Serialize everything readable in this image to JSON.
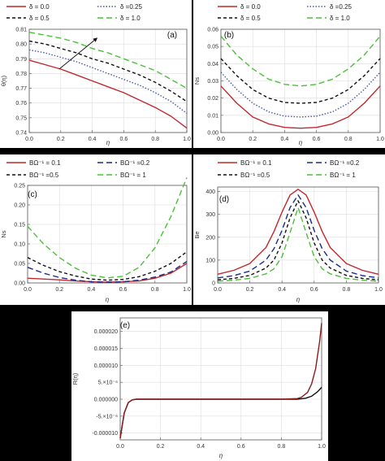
{
  "chart_data": [
    {
      "id": "a",
      "type": "line",
      "panel_label": "(a)",
      "xlabel": "η",
      "ylabel": "θ(η)",
      "xlim": [
        0,
        1
      ],
      "ylim": [
        0.74,
        0.81
      ],
      "xticks": [
        0.0,
        0.2,
        0.4,
        0.6,
        0.8,
        1.0
      ],
      "yticks": [
        0.74,
        0.75,
        0.76,
        0.77,
        0.78,
        0.79,
        0.8,
        0.81
      ],
      "legend": {
        "placement": "top",
        "columns": 2
      },
      "annotations": [
        "arrow"
      ],
      "series": [
        {
          "name": "δ = 0.0",
          "color": "#c0282d",
          "dash": "solid",
          "x": [
            0,
            0.1,
            0.2,
            0.3,
            0.4,
            0.5,
            0.6,
            0.7,
            0.8,
            0.9,
            1.0
          ],
          "y": [
            0.789,
            0.786,
            0.783,
            0.779,
            0.775,
            0.771,
            0.767,
            0.762,
            0.757,
            0.751,
            0.743
          ]
        },
        {
          "name": "δ =0.25",
          "color": "#4a58a8",
          "dash": "dot",
          "x": [
            0,
            0.1,
            0.2,
            0.3,
            0.4,
            0.5,
            0.6,
            0.7,
            0.8,
            0.9,
            1.0
          ],
          "y": [
            0.796,
            0.794,
            0.791,
            0.788,
            0.784,
            0.78,
            0.776,
            0.772,
            0.767,
            0.761,
            0.753
          ]
        },
        {
          "name": "δ = 0.5",
          "color": "#111111",
          "dash": "dash",
          "x": [
            0,
            0.1,
            0.2,
            0.3,
            0.4,
            0.5,
            0.6,
            0.7,
            0.8,
            0.9,
            1.0
          ],
          "y": [
            0.802,
            0.8,
            0.797,
            0.794,
            0.79,
            0.787,
            0.783,
            0.779,
            0.774,
            0.768,
            0.761
          ]
        },
        {
          "name": "δ = 1.0",
          "color": "#4cbf3a",
          "dash": "longdash",
          "x": [
            0,
            0.1,
            0.2,
            0.3,
            0.4,
            0.5,
            0.6,
            0.7,
            0.8,
            0.9,
            1.0
          ],
          "y": [
            0.808,
            0.806,
            0.804,
            0.801,
            0.797,
            0.794,
            0.79,
            0.786,
            0.782,
            0.776,
            0.77
          ]
        }
      ]
    },
    {
      "id": "b",
      "type": "line",
      "panel_label": "(b)",
      "xlabel": "η",
      "ylabel": "Ns",
      "xlim": [
        0,
        1
      ],
      "ylim": [
        0,
        0.06
      ],
      "xticks": [
        0.0,
        0.2,
        0.4,
        0.6,
        0.8,
        1.0
      ],
      "yticks": [
        0.0,
        0.01,
        0.02,
        0.03,
        0.04,
        0.05,
        0.06
      ],
      "legend": {
        "placement": "top",
        "columns": 2
      },
      "series": [
        {
          "name": "δ = 0.0",
          "color": "#c0282d",
          "dash": "solid",
          "x": [
            0,
            0.1,
            0.2,
            0.3,
            0.4,
            0.5,
            0.6,
            0.7,
            0.8,
            0.9,
            1.0
          ],
          "y": [
            0.027,
            0.017,
            0.009,
            0.005,
            0.003,
            0.0025,
            0.003,
            0.005,
            0.009,
            0.017,
            0.027
          ]
        },
        {
          "name": "δ =0.25",
          "color": "#4a58a8",
          "dash": "dot",
          "x": [
            0,
            0.1,
            0.2,
            0.3,
            0.4,
            0.5,
            0.6,
            0.7,
            0.8,
            0.9,
            1.0
          ],
          "y": [
            0.035,
            0.025,
            0.017,
            0.012,
            0.0095,
            0.009,
            0.0095,
            0.012,
            0.017,
            0.025,
            0.035
          ]
        },
        {
          "name": "δ = 0.5",
          "color": "#111111",
          "dash": "dash",
          "x": [
            0,
            0.1,
            0.2,
            0.3,
            0.4,
            0.5,
            0.6,
            0.7,
            0.8,
            0.9,
            1.0
          ],
          "y": [
            0.043,
            0.033,
            0.025,
            0.02,
            0.0175,
            0.017,
            0.0175,
            0.02,
            0.025,
            0.033,
            0.043
          ]
        },
        {
          "name": "δ = 1.0",
          "color": "#4cbf3a",
          "dash": "longdash",
          "x": [
            0,
            0.1,
            0.2,
            0.3,
            0.4,
            0.5,
            0.6,
            0.7,
            0.8,
            0.9,
            1.0
          ],
          "y": [
            0.056,
            0.045,
            0.037,
            0.031,
            0.028,
            0.027,
            0.028,
            0.031,
            0.037,
            0.045,
            0.056
          ]
        }
      ]
    },
    {
      "id": "c",
      "type": "line",
      "panel_label": "(c)",
      "xlabel": "η",
      "ylabel": "Ns",
      "xlim": [
        0,
        1
      ],
      "ylim": [
        0,
        0.25
      ],
      "xticks": [
        0.0,
        0.2,
        0.4,
        0.6,
        0.8,
        1.0
      ],
      "yticks": [
        0.0,
        0.05,
        0.1,
        0.15,
        0.2,
        0.25
      ],
      "legend": {
        "placement": "top",
        "columns": 2
      },
      "series": [
        {
          "name": "BΩ⁻¹ = 0.1",
          "color": "#c0282d",
          "dash": "solid",
          "x": [
            0,
            0.1,
            0.2,
            0.3,
            0.4,
            0.5,
            0.6,
            0.7,
            0.8,
            0.9,
            1.0
          ],
          "y": [
            0.012,
            0.01,
            0.008,
            0.005,
            0.003,
            0.002,
            0.003,
            0.005,
            0.012,
            0.025,
            0.05
          ]
        },
        {
          "name": "BΩ⁻¹ =0.2",
          "color": "#1a2a8c",
          "dash": "longdash",
          "x": [
            0,
            0.1,
            0.2,
            0.3,
            0.4,
            0.5,
            0.6,
            0.7,
            0.8,
            0.9,
            1.0
          ],
          "y": [
            0.04,
            0.025,
            0.014,
            0.007,
            0.003,
            0.002,
            0.003,
            0.007,
            0.015,
            0.028,
            0.055
          ]
        },
        {
          "name": "BΩ⁻¹ =0.5",
          "color": "#111111",
          "dash": "dash",
          "x": [
            0,
            0.1,
            0.2,
            0.3,
            0.4,
            0.5,
            0.6,
            0.7,
            0.8,
            0.9,
            1.0
          ],
          "y": [
            0.065,
            0.045,
            0.029,
            0.018,
            0.01,
            0.007,
            0.009,
            0.016,
            0.03,
            0.05,
            0.08
          ]
        },
        {
          "name": "BΩ⁻¹ = 1",
          "color": "#4cbf3a",
          "dash": "longdash",
          "x": [
            0,
            0.1,
            0.2,
            0.3,
            0.4,
            0.5,
            0.6,
            0.7,
            0.8,
            0.9,
            1.0
          ],
          "y": [
            0.145,
            0.1,
            0.065,
            0.038,
            0.02,
            0.013,
            0.017,
            0.04,
            0.09,
            0.17,
            0.27
          ]
        }
      ]
    },
    {
      "id": "d",
      "type": "line",
      "panel_label": "(d)",
      "xlabel": "η",
      "ylabel": "Be",
      "xlim": [
        0,
        1
      ],
      "ylim": [
        0,
        420
      ],
      "xticks": [
        0.0,
        0.2,
        0.4,
        0.6,
        0.8,
        1.0
      ],
      "yticks": [
        0,
        100,
        200,
        300,
        400
      ],
      "legend": {
        "placement": "top",
        "columns": 2
      },
      "series": [
        {
          "name": "BΩ⁻¹ = 0.1",
          "color": "#c0282d",
          "dash": "solid",
          "x": [
            0,
            0.1,
            0.2,
            0.3,
            0.35,
            0.4,
            0.45,
            0.5,
            0.55,
            0.6,
            0.65,
            0.7,
            0.8,
            0.9,
            1.0
          ],
          "y": [
            38,
            55,
            85,
            155,
            225,
            310,
            385,
            410,
            385,
            310,
            225,
            155,
            85,
            55,
            38
          ]
        },
        {
          "name": "BΩ⁻¹ =0.2",
          "color": "#1a2a8c",
          "dash": "longdash",
          "x": [
            0,
            0.1,
            0.2,
            0.3,
            0.35,
            0.4,
            0.45,
            0.5,
            0.55,
            0.6,
            0.65,
            0.7,
            0.8,
            0.9,
            1.0
          ],
          "y": [
            22,
            32,
            52,
            100,
            150,
            230,
            330,
            385,
            330,
            230,
            150,
            100,
            52,
            32,
            22
          ]
        },
        {
          "name": "BΩ⁻¹ =0.5",
          "color": "#111111",
          "dash": "dash",
          "x": [
            0,
            0.1,
            0.2,
            0.3,
            0.35,
            0.4,
            0.45,
            0.5,
            0.55,
            0.6,
            0.65,
            0.7,
            0.8,
            0.9,
            1.0
          ],
          "y": [
            14,
            20,
            33,
            65,
            100,
            175,
            285,
            360,
            285,
            175,
            100,
            65,
            33,
            20,
            14
          ]
        },
        {
          "name": "BΩ⁻¹ = 1",
          "color": "#4cbf3a",
          "dash": "longdash",
          "x": [
            0,
            0.1,
            0.2,
            0.3,
            0.35,
            0.4,
            0.45,
            0.5,
            0.55,
            0.6,
            0.65,
            0.7,
            0.8,
            0.9,
            1.0
          ],
          "y": [
            8,
            12,
            20,
            40,
            62,
            115,
            220,
            330,
            220,
            115,
            62,
            40,
            20,
            12,
            8
          ]
        }
      ]
    },
    {
      "id": "e",
      "type": "line",
      "panel_label": "(e)",
      "xlabel": "η",
      "ylabel": "R(η)",
      "xlim": [
        0,
        1
      ],
      "ylim": [
        -1.2e-05,
        2.4e-05
      ],
      "xticks": [
        0.0,
        0.2,
        0.4,
        0.6,
        0.8,
        1.0
      ],
      "xtick_labels": [
        "0.0",
        "0.2",
        "0.4",
        "0.6",
        "0.8",
        "1.0"
      ],
      "yticks": [
        -1e-05,
        -5e-06,
        0,
        5e-06,
        1e-05,
        1.5e-05,
        2e-05
      ],
      "ytick_labels": [
        "-0.000010",
        "-5.×10⁻⁶",
        "0.000000",
        "5.×10⁻⁶",
        "0.000010",
        "0.000015",
        "0.000020"
      ],
      "series": [
        {
          "name": "",
          "color": "#111111",
          "dash": "solid",
          "x": [
            0,
            0.02,
            0.04,
            0.06,
            0.08,
            0.1,
            0.2,
            0.4,
            0.6,
            0.8,
            0.88,
            0.92,
            0.95,
            0.98,
            1.0
          ],
          "y": [
            -1.15e-05,
            -4e-06,
            -1e-06,
            -2e-07,
            0,
            0,
            0,
            0,
            0,
            0,
            0,
            3e-07,
            9e-07,
            2.2e-06,
            3.5e-06
          ]
        },
        {
          "name": "",
          "color": "#8b1a1a",
          "dash": "solid",
          "x": [
            0,
            0.02,
            0.04,
            0.06,
            0.08,
            0.1,
            0.2,
            0.4,
            0.6,
            0.8,
            0.88,
            0.9,
            0.93,
            0.95,
            0.97,
            0.99,
            1.0
          ],
          "y": [
            -1.15e-05,
            -4e-06,
            -1e-06,
            -2e-07,
            0,
            0,
            0,
            0,
            0,
            0,
            2e-07,
            6e-07,
            2e-06,
            4.5e-06,
            9e-06,
            1.7e-05,
            2.25e-05
          ]
        }
      ]
    }
  ]
}
